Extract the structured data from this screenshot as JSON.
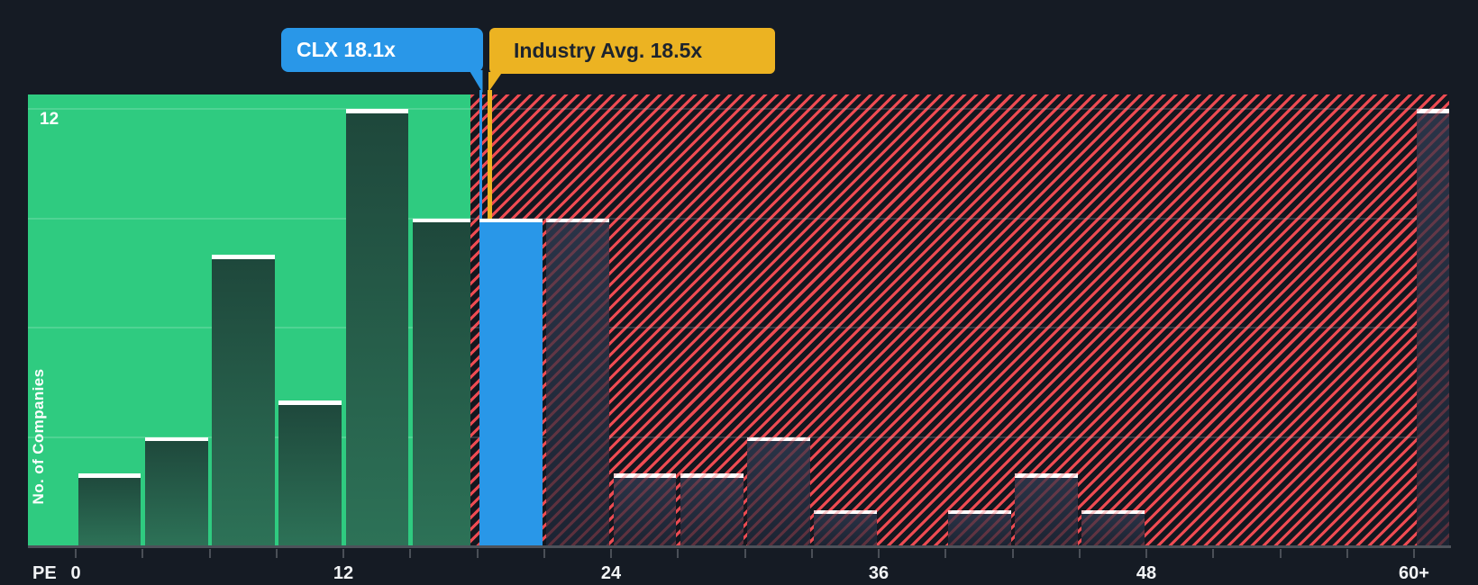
{
  "chart_data": {
    "type": "bar",
    "title": "PE ratio histogram: CLX vs peers and industry average",
    "xlabel": "PE",
    "ylabel": "No. of Companies",
    "y_max_gridline_label": "12",
    "ylim": [
      0,
      12.4
    ],
    "gridline_values": [
      3,
      6,
      9,
      12
    ],
    "bucket_size": 3,
    "x_tick_step": 3,
    "x_tick_labels": [
      {
        "value": 0,
        "label": "0"
      },
      {
        "value": 12,
        "label": "12"
      },
      {
        "value": 24,
        "label": "24"
      },
      {
        "value": 36,
        "label": "36"
      },
      {
        "value": 48,
        "label": "48"
      },
      {
        "value": 60,
        "label": "60+"
      }
    ],
    "buckets": [
      {
        "range": "0-3",
        "value": 2
      },
      {
        "range": "3-6",
        "value": 3
      },
      {
        "range": "6-9",
        "value": 8
      },
      {
        "range": "9-12",
        "value": 4
      },
      {
        "range": "12-15",
        "value": 12
      },
      {
        "range": "15-18",
        "value": 9
      },
      {
        "range": "18-21",
        "value": 9,
        "highlight": "company"
      },
      {
        "range": "21-24",
        "value": 9
      },
      {
        "range": "24-27",
        "value": 2
      },
      {
        "range": "27-30",
        "value": 2
      },
      {
        "range": "30-33",
        "value": 3
      },
      {
        "range": "33-36",
        "value": 1
      },
      {
        "range": "36-39",
        "value": 0
      },
      {
        "range": "39-42",
        "value": 1
      },
      {
        "range": "42-45",
        "value": 2
      },
      {
        "range": "45-48",
        "value": 1
      },
      {
        "range": "48-51",
        "value": 0
      },
      {
        "range": "51-54",
        "value": 0
      },
      {
        "range": "54-57",
        "value": 0
      },
      {
        "range": "57-60",
        "value": 0
      },
      {
        "range": "60+",
        "value": 12
      }
    ],
    "markers": {
      "company": {
        "label": "CLX 18.1x",
        "value": 18.1
      },
      "industry": {
        "label": "Industry Avg. 18.5x",
        "value": 18.5
      }
    },
    "zones": {
      "below_company": "green",
      "above_company": "red-hatched",
      "company_bucket": "blue"
    }
  },
  "colors": {
    "background": "#151b24",
    "green_zone": "#2fcb80",
    "company_blue": "#2997e8",
    "industry_yellow": "#ecb322",
    "hatch_red": "#ee4b52",
    "hatch_background": "#13171f",
    "teal_bar_top": "#1e473b",
    "teal_bar_bottom": "#2d7257",
    "navy_bar_top": "#2a3448",
    "navy_bar_bottom": "#1c2433",
    "bar_cap": "#ffffff",
    "axis_line": "#4d525a",
    "tick": "#4a4f57",
    "axis_text": "#f2f4f6",
    "industry_label_text": "#1d242e"
  }
}
